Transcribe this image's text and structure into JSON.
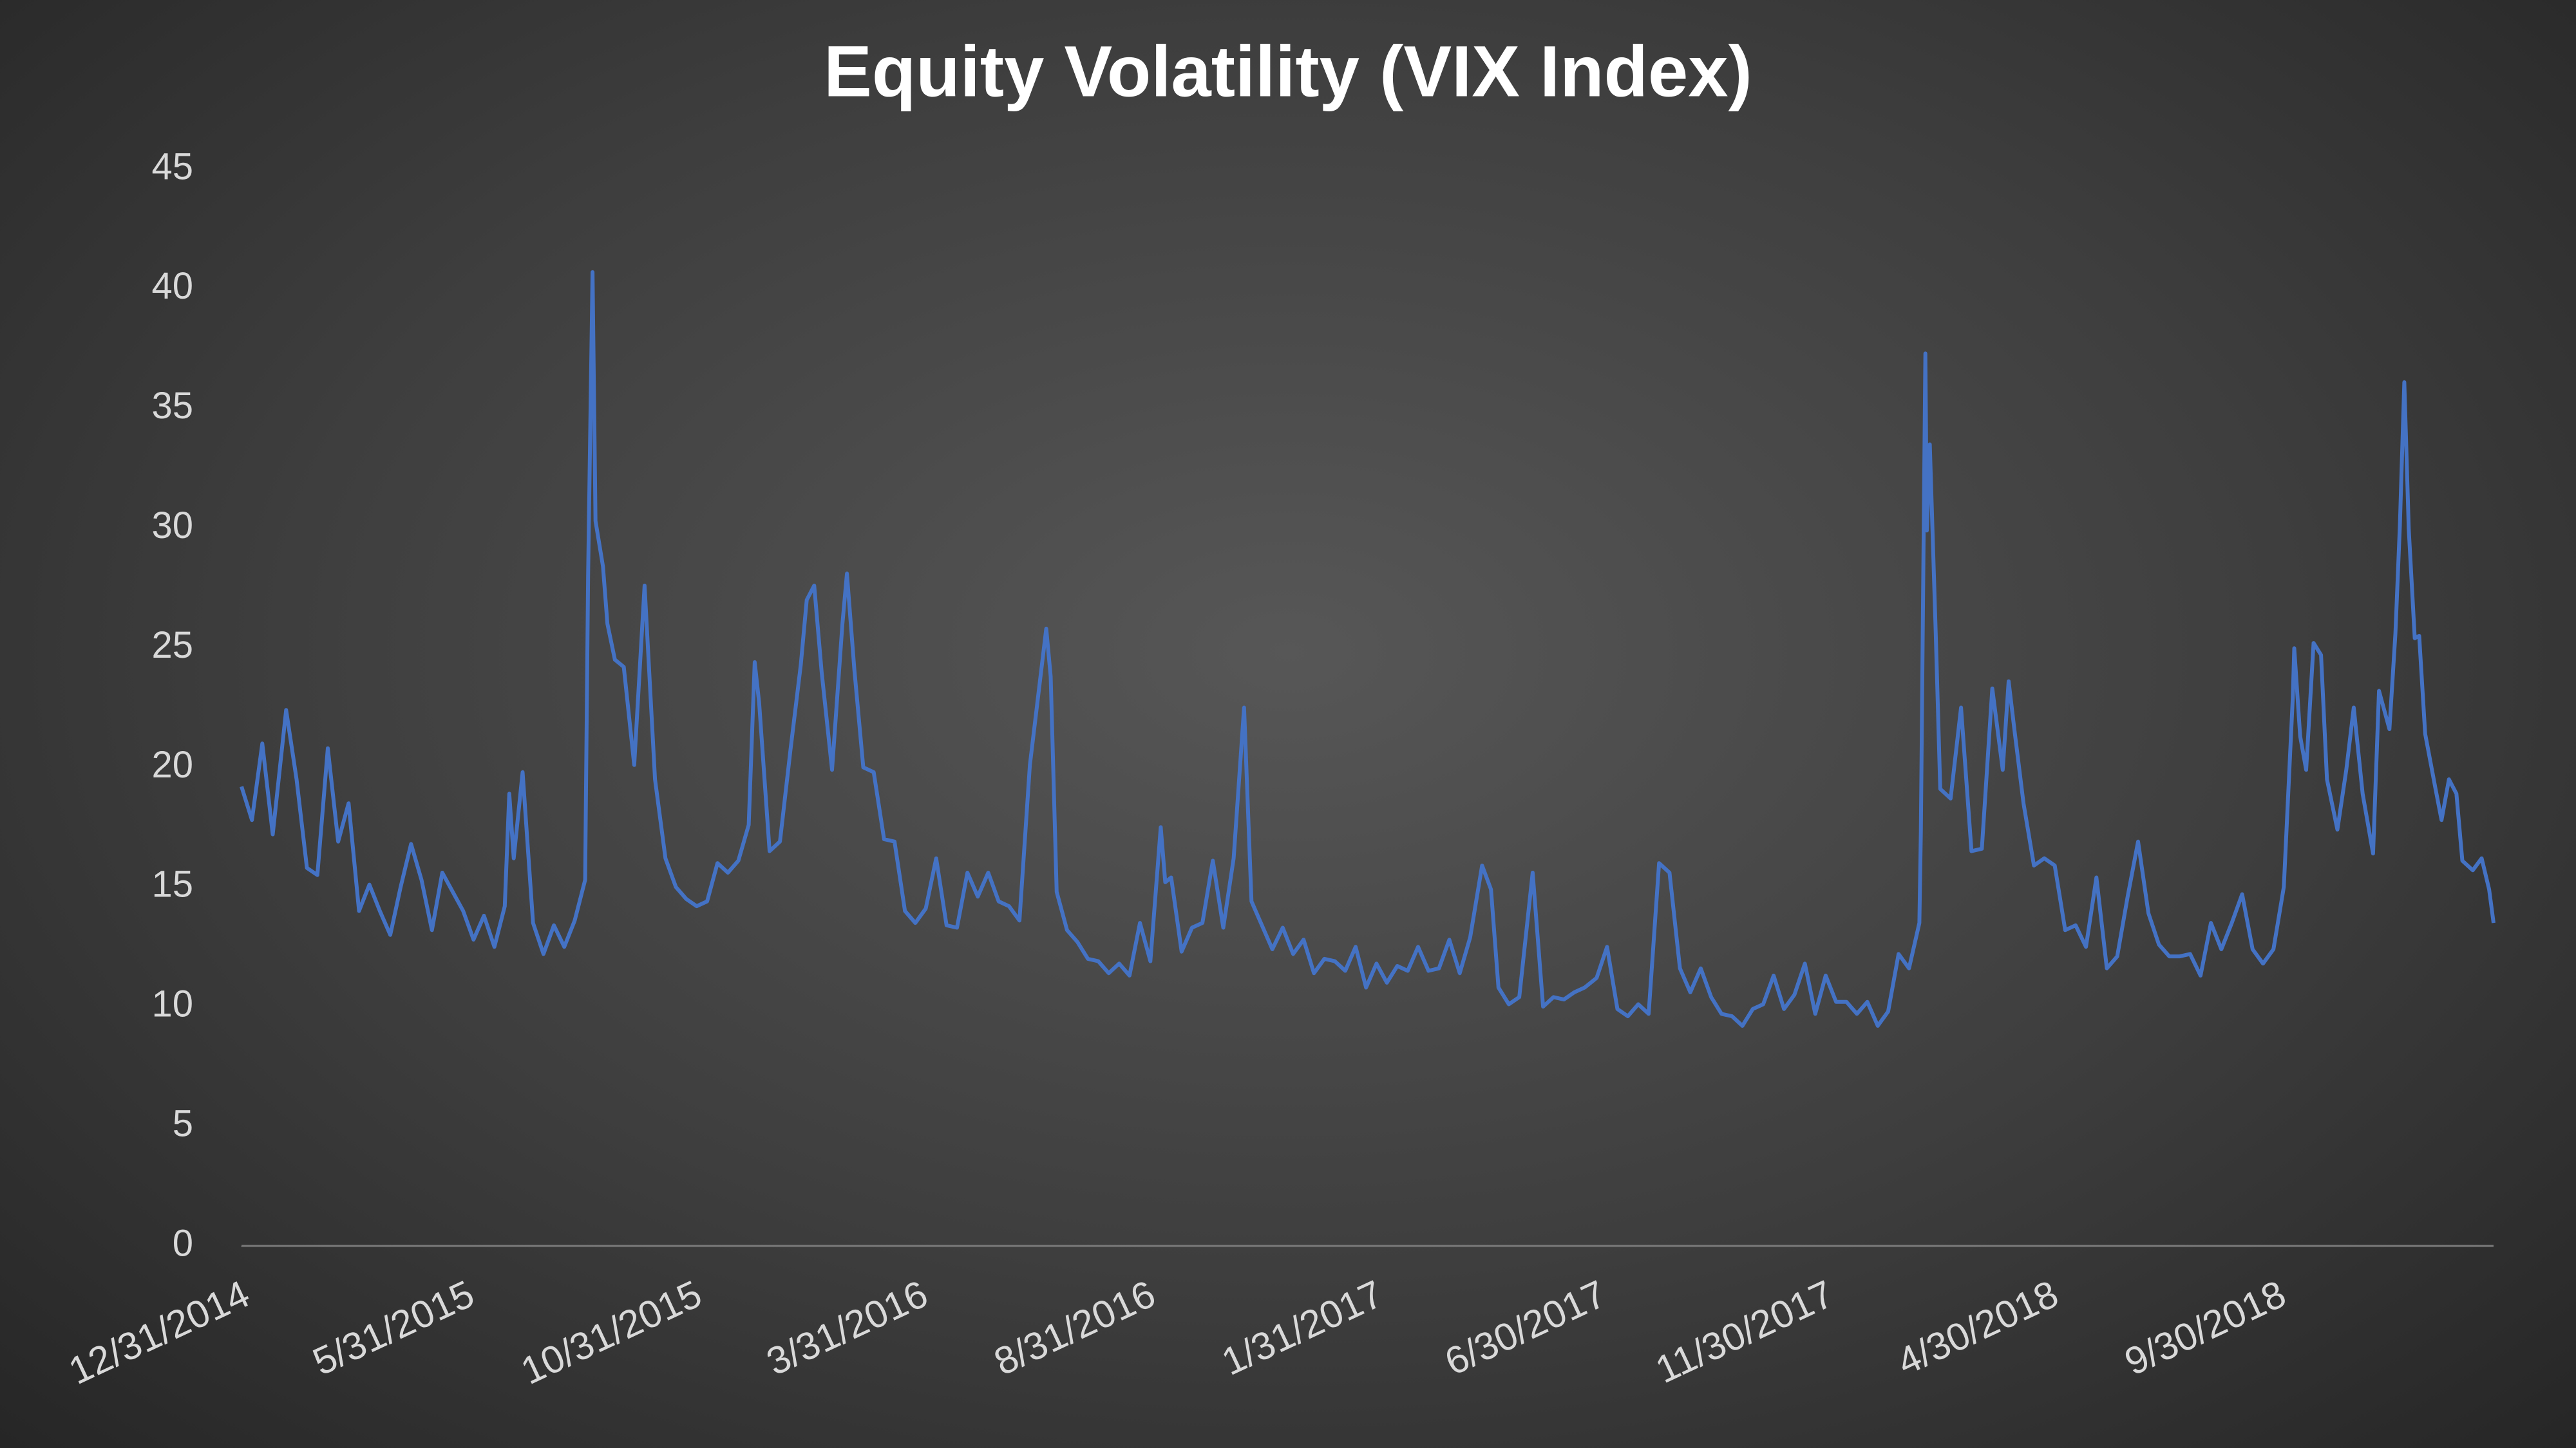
{
  "chart_data": {
    "type": "line",
    "title": "Equity Volatility (VIX Index)",
    "x": [
      "12/31/2014",
      "1/7/2015",
      "1/14/2015",
      "1/21/2015",
      "1/30/2015",
      "2/6/2015",
      "2/13/2015",
      "2/20/2015",
      "2/27/2015",
      "3/6/2015",
      "3/13/2015",
      "3/20/2015",
      "3/27/2015",
      "4/3/2015",
      "4/10/2015",
      "4/17/2015",
      "4/24/2015",
      "5/1/2015",
      "5/8/2015",
      "5/15/2015",
      "5/22/2015",
      "5/29/2015",
      "6/5/2015",
      "6/12/2015",
      "6/19/2015",
      "6/26/2015",
      "6/29/2015",
      "7/2/2015",
      "7/8/2015",
      "7/15/2015",
      "7/22/2015",
      "7/29/2015",
      "8/5/2015",
      "8/12/2015",
      "8/19/2015",
      "8/21/2015",
      "8/24/2015",
      "8/26/2015",
      "8/31/2015",
      "9/3/2015",
      "9/8/2015",
      "9/14/2015",
      "9/21/2015",
      "9/28/2015",
      "10/5/2015",
      "10/12/2015",
      "10/19/2015",
      "10/26/2015",
      "11/2/2015",
      "11/9/2015",
      "11/16/2015",
      "11/23/2015",
      "11/30/2015",
      "12/7/2015",
      "12/11/2015",
      "12/14/2015",
      "12/21/2015",
      "12/28/2015",
      "1/4/2016",
      "1/11/2016",
      "1/15/2016",
      "1/20/2016",
      "1/25/2016",
      "2/1/2016",
      "2/8/2016",
      "2/11/2016",
      "2/16/2016",
      "2/22/2016",
      "2/29/2016",
      "3/7/2016",
      "3/14/2016",
      "3/21/2016",
      "3/28/2016",
      "4/4/2016",
      "4/11/2016",
      "4/18/2016",
      "4/25/2016",
      "5/2/2016",
      "5/9/2016",
      "5/16/2016",
      "5/23/2016",
      "5/30/2016",
      "6/6/2016",
      "6/13/2016",
      "6/24/2016",
      "6/27/2016",
      "7/1/2016",
      "7/8/2016",
      "7/15/2016",
      "7/22/2016",
      "7/29/2016",
      "8/5/2016",
      "8/12/2016",
      "8/19/2016",
      "8/26/2016",
      "9/2/2016",
      "9/9/2016",
      "9/12/2016",
      "9/16/2016",
      "9/23/2016",
      "9/30/2016",
      "10/7/2016",
      "10/14/2016",
      "10/21/2016",
      "10/28/2016",
      "11/4/2016",
      "11/9/2016",
      "11/16/2016",
      "11/23/2016",
      "11/30/2016",
      "12/7/2016",
      "12/14/2016",
      "12/21/2016",
      "12/28/2016",
      "1/4/2017",
      "1/11/2017",
      "1/18/2017",
      "1/25/2017",
      "2/1/2017",
      "2/8/2017",
      "2/15/2017",
      "2/22/2017",
      "3/1/2017",
      "3/8/2017",
      "3/15/2017",
      "3/22/2017",
      "3/29/2017",
      "4/5/2017",
      "4/13/2017",
      "4/19/2017",
      "4/24/2017",
      "5/1/2017",
      "5/8/2017",
      "5/17/2017",
      "5/24/2017",
      "5/31/2017",
      "6/7/2017",
      "6/14/2017",
      "6/21/2017",
      "6/29/2017",
      "7/6/2017",
      "7/13/2017",
      "7/20/2017",
      "7/27/2017",
      "8/3/2017",
      "8/10/2017",
      "8/17/2017",
      "8/24/2017",
      "8/31/2017",
      "9/7/2017",
      "9/14/2017",
      "9/21/2017",
      "9/28/2017",
      "10/5/2017",
      "10/12/2017",
      "10/19/2017",
      "10/26/2017",
      "11/2/2017",
      "11/9/2017",
      "11/16/2017",
      "11/23/2017",
      "11/30/2017",
      "12/7/2017",
      "12/14/2017",
      "12/21/2017",
      "12/28/2017",
      "1/4/2018",
      "1/11/2018",
      "1/18/2018",
      "1/25/2018",
      "2/1/2018",
      "2/2/2018",
      "2/5/2018",
      "2/6/2018",
      "2/8/2018",
      "2/12/2018",
      "2/15/2018",
      "2/22/2018",
      "3/1/2018",
      "3/8/2018",
      "3/15/2018",
      "3/22/2018",
      "3/29/2018",
      "4/2/2018",
      "4/6/2018",
      "4/12/2018",
      "4/19/2018",
      "4/26/2018",
      "5/3/2018",
      "5/10/2018",
      "5/17/2018",
      "5/24/2018",
      "5/31/2018",
      "6/7/2018",
      "6/14/2018",
      "6/21/2018",
      "6/28/2018",
      "7/5/2018",
      "7/12/2018",
      "7/19/2018",
      "7/26/2018",
      "8/2/2018",
      "8/9/2018",
      "8/16/2018",
      "8/23/2018",
      "8/30/2018",
      "9/6/2018",
      "9/13/2018",
      "9/20/2018",
      "9/27/2018",
      "10/4/2018",
      "10/10/2018",
      "10/11/2018",
      "10/15/2018",
      "10/19/2018",
      "10/24/2018",
      "10/29/2018",
      "11/2/2018",
      "11/9/2018",
      "11/15/2018",
      "11/20/2018",
      "11/26/2018",
      "12/3/2018",
      "12/7/2018",
      "12/14/2018",
      "12/18/2018",
      "12/21/2018",
      "12/24/2018",
      "12/27/2018",
      "12/31/2018",
      "1/3/2019",
      "1/7/2019",
      "1/14/2019",
      "1/18/2019",
      "1/23/2019",
      "1/28/2019",
      "2/1/2019",
      "2/8/2019",
      "2/14/2019",
      "2/19/2019",
      "2/22/2019"
    ],
    "values": [
      19.2,
      17.8,
      21.0,
      17.2,
      22.4,
      19.5,
      15.8,
      15.5,
      20.8,
      16.9,
      18.5,
      14.0,
      15.1,
      14.0,
      13.0,
      15.0,
      16.8,
      15.3,
      13.2,
      15.6,
      14.8,
      14.0,
      12.8,
      13.8,
      12.5,
      14.2,
      18.9,
      16.2,
      19.8,
      13.5,
      12.2,
      13.4,
      12.5,
      13.6,
      15.3,
      28.0,
      40.7,
      30.3,
      28.4,
      26.0,
      24.5,
      24.2,
      20.1,
      27.6,
      19.5,
      16.2,
      15.0,
      14.5,
      14.2,
      14.4,
      16.0,
      15.6,
      16.1,
      17.6,
      24.4,
      22.7,
      16.5,
      16.9,
      20.7,
      24.3,
      27.0,
      27.6,
      24.0,
      19.9,
      26.0,
      28.1,
      24.1,
      20.0,
      19.8,
      17.0,
      16.9,
      14.0,
      13.5,
      14.1,
      16.2,
      13.4,
      13.3,
      15.6,
      14.6,
      15.6,
      14.4,
      14.2,
      13.6,
      20.1,
      25.8,
      23.8,
      14.8,
      13.2,
      12.7,
      12.0,
      11.9,
      11.4,
      11.8,
      11.3,
      13.5,
      11.9,
      17.5,
      15.2,
      15.4,
      12.3,
      13.3,
      13.5,
      16.1,
      13.3,
      16.2,
      22.5,
      14.4,
      13.4,
      12.4,
      13.3,
      12.2,
      12.8,
      11.4,
      12.0,
      11.9,
      11.5,
      12.5,
      10.8,
      11.8,
      11.0,
      11.7,
      11.5,
      12.5,
      11.5,
      11.6,
      12.8,
      11.4,
      12.9,
      15.9,
      14.9,
      10.8,
      10.1,
      10.4,
      15.6,
      10.0,
      10.4,
      10.3,
      10.6,
      10.8,
      11.2,
      12.5,
      9.9,
      9.6,
      10.1,
      9.7,
      16.0,
      15.6,
      11.6,
      10.6,
      11.6,
      10.4,
      9.7,
      9.6,
      9.2,
      9.9,
      10.1,
      11.3,
      9.9,
      10.5,
      11.8,
      9.7,
      11.3,
      10.2,
      10.2,
      9.7,
      10.2,
      9.2,
      9.8,
      12.2,
      11.6,
      13.5,
      17.3,
      37.3,
      29.9,
      33.5,
      25.6,
      19.1,
      18.7,
      22.5,
      16.5,
      16.6,
      23.3,
      19.9,
      23.6,
      21.5,
      18.5,
      15.9,
      16.2,
      15.9,
      13.2,
      13.4,
      12.5,
      15.4,
      11.6,
      12.1,
      14.6,
      16.9,
      13.9,
      12.6,
      12.1,
      12.1,
      12.2,
      11.3,
      13.5,
      12.4,
      13.5,
      14.7,
      12.4,
      11.8,
      12.4,
      15.0,
      22.9,
      24.98,
      21.3,
      19.9,
      25.2,
      24.7,
      19.5,
      17.4,
      19.9,
      22.5,
      18.9,
      16.4,
      23.2,
      21.6,
      25.6,
      30.1,
      36.1,
      29.96,
      25.4,
      25.5,
      21.4,
      19.1,
      17.8,
      19.5,
      18.9,
      16.1,
      15.7,
      16.2,
      14.9,
      13.5
    ],
    "color": "#4472c4",
    "xlim": [
      "12/31/2014",
      "2/22/2019"
    ],
    "xticks": [
      "12/31/2014",
      "5/31/2015",
      "10/31/2015",
      "3/31/2016",
      "8/31/2016",
      "1/31/2017",
      "6/30/2017",
      "11/30/2017",
      "4/30/2018",
      "9/30/2018"
    ],
    "ylim": [
      0,
      45
    ],
    "yticks": [
      0,
      5,
      10,
      15,
      20,
      25,
      30,
      35,
      40,
      45
    ],
    "grid": false
  }
}
